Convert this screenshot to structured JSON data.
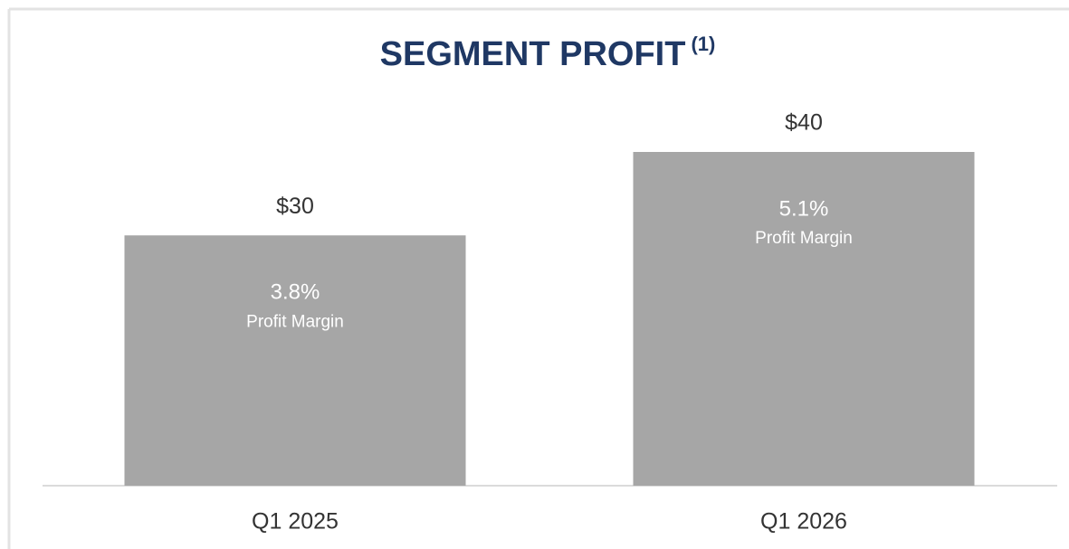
{
  "chart_data": {
    "type": "bar",
    "title": "SEGMENT PROFIT",
    "title_note": "(1)",
    "categories": [
      "Q1 2025",
      "Q1 2026"
    ],
    "values": [
      30,
      40
    ],
    "value_labels": [
      "$30",
      "$40"
    ],
    "color": "#a6a6a6",
    "ylim": [
      0,
      40
    ],
    "margins": [
      3.8,
      5.1
    ],
    "margin_labels": [
      "3.8%",
      "5.1%"
    ],
    "margin_caption": "Profit Margin"
  }
}
